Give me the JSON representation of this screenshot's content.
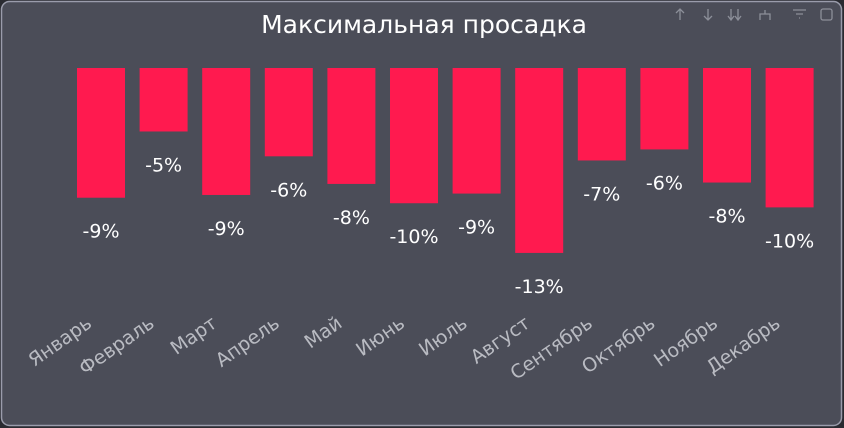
{
  "chart_data": {
    "type": "bar",
    "title": "Максимальная просадка",
    "categories": [
      "Январь",
      "Февраль",
      "Март",
      "Апрель",
      "Май",
      "Июнь",
      "Июль",
      "Август",
      "Сентябрь",
      "Октябрь",
      "Ноябрь",
      "Декабрь"
    ],
    "values": [
      -9.4,
      -4.6,
      -9.2,
      -6.4,
      -8.4,
      -9.8,
      -9.1,
      -13.4,
      -6.7,
      -5.9,
      -8.3,
      -10.1
    ],
    "value_labels": [
      "-9%",
      "-5%",
      "-9%",
      "-6%",
      "-8%",
      "-10%",
      "-9%",
      "-13%",
      "-7%",
      "-6%",
      "-8%",
      "-10%"
    ],
    "color": "#ff1a4f",
    "ylim": [
      -14,
      0
    ]
  }
}
